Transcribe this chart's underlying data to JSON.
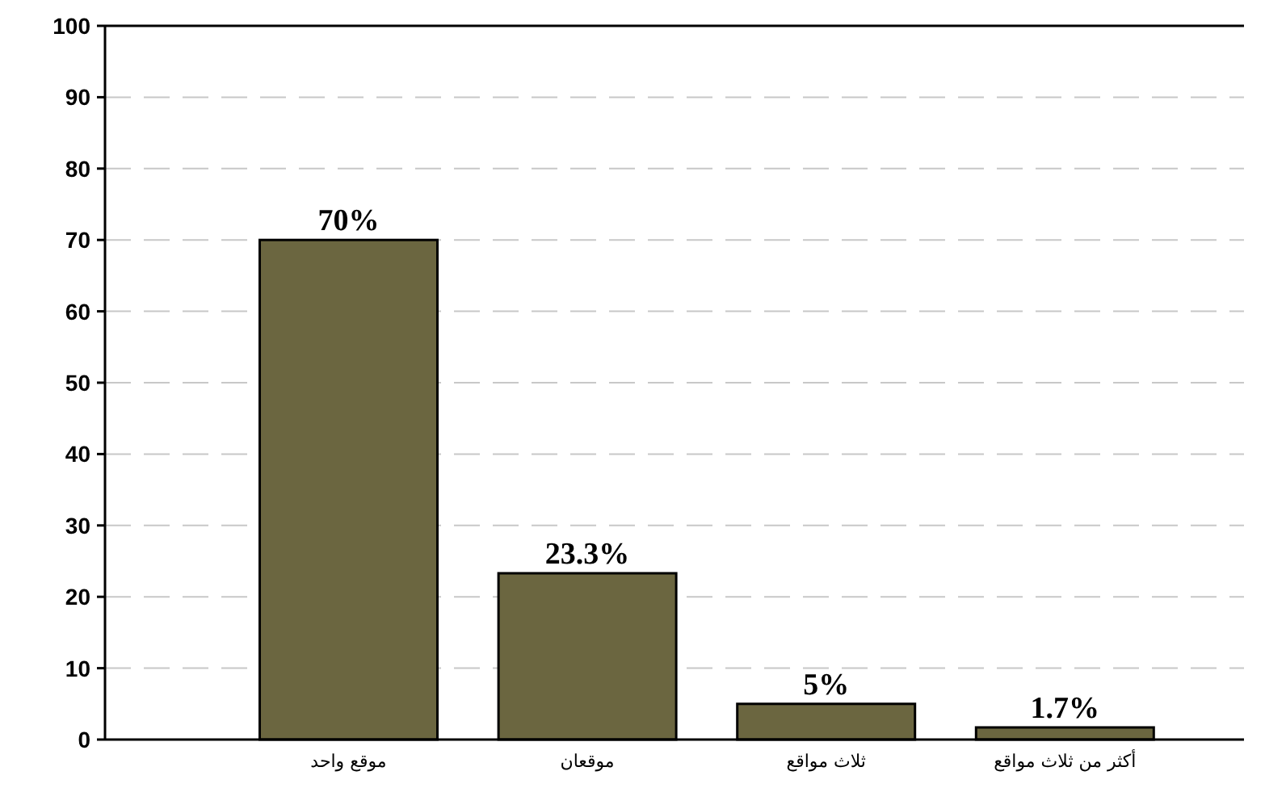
{
  "chart_data": {
    "type": "bar",
    "categories": [
      "موقع واحد",
      "موقعان",
      "ثلاث مواقع",
      "أكثر من ثلاث مواقع"
    ],
    "values": [
      70,
      23.3,
      5,
      1.7
    ],
    "value_labels": [
      "70%",
      "23.3%",
      "5%",
      "1.7%"
    ],
    "color": "#6b6640",
    "ylim": [
      0,
      100
    ],
    "yticks": [
      0,
      10,
      20,
      30,
      40,
      50,
      60,
      70,
      80,
      90,
      100
    ],
    "grid": "y"
  }
}
